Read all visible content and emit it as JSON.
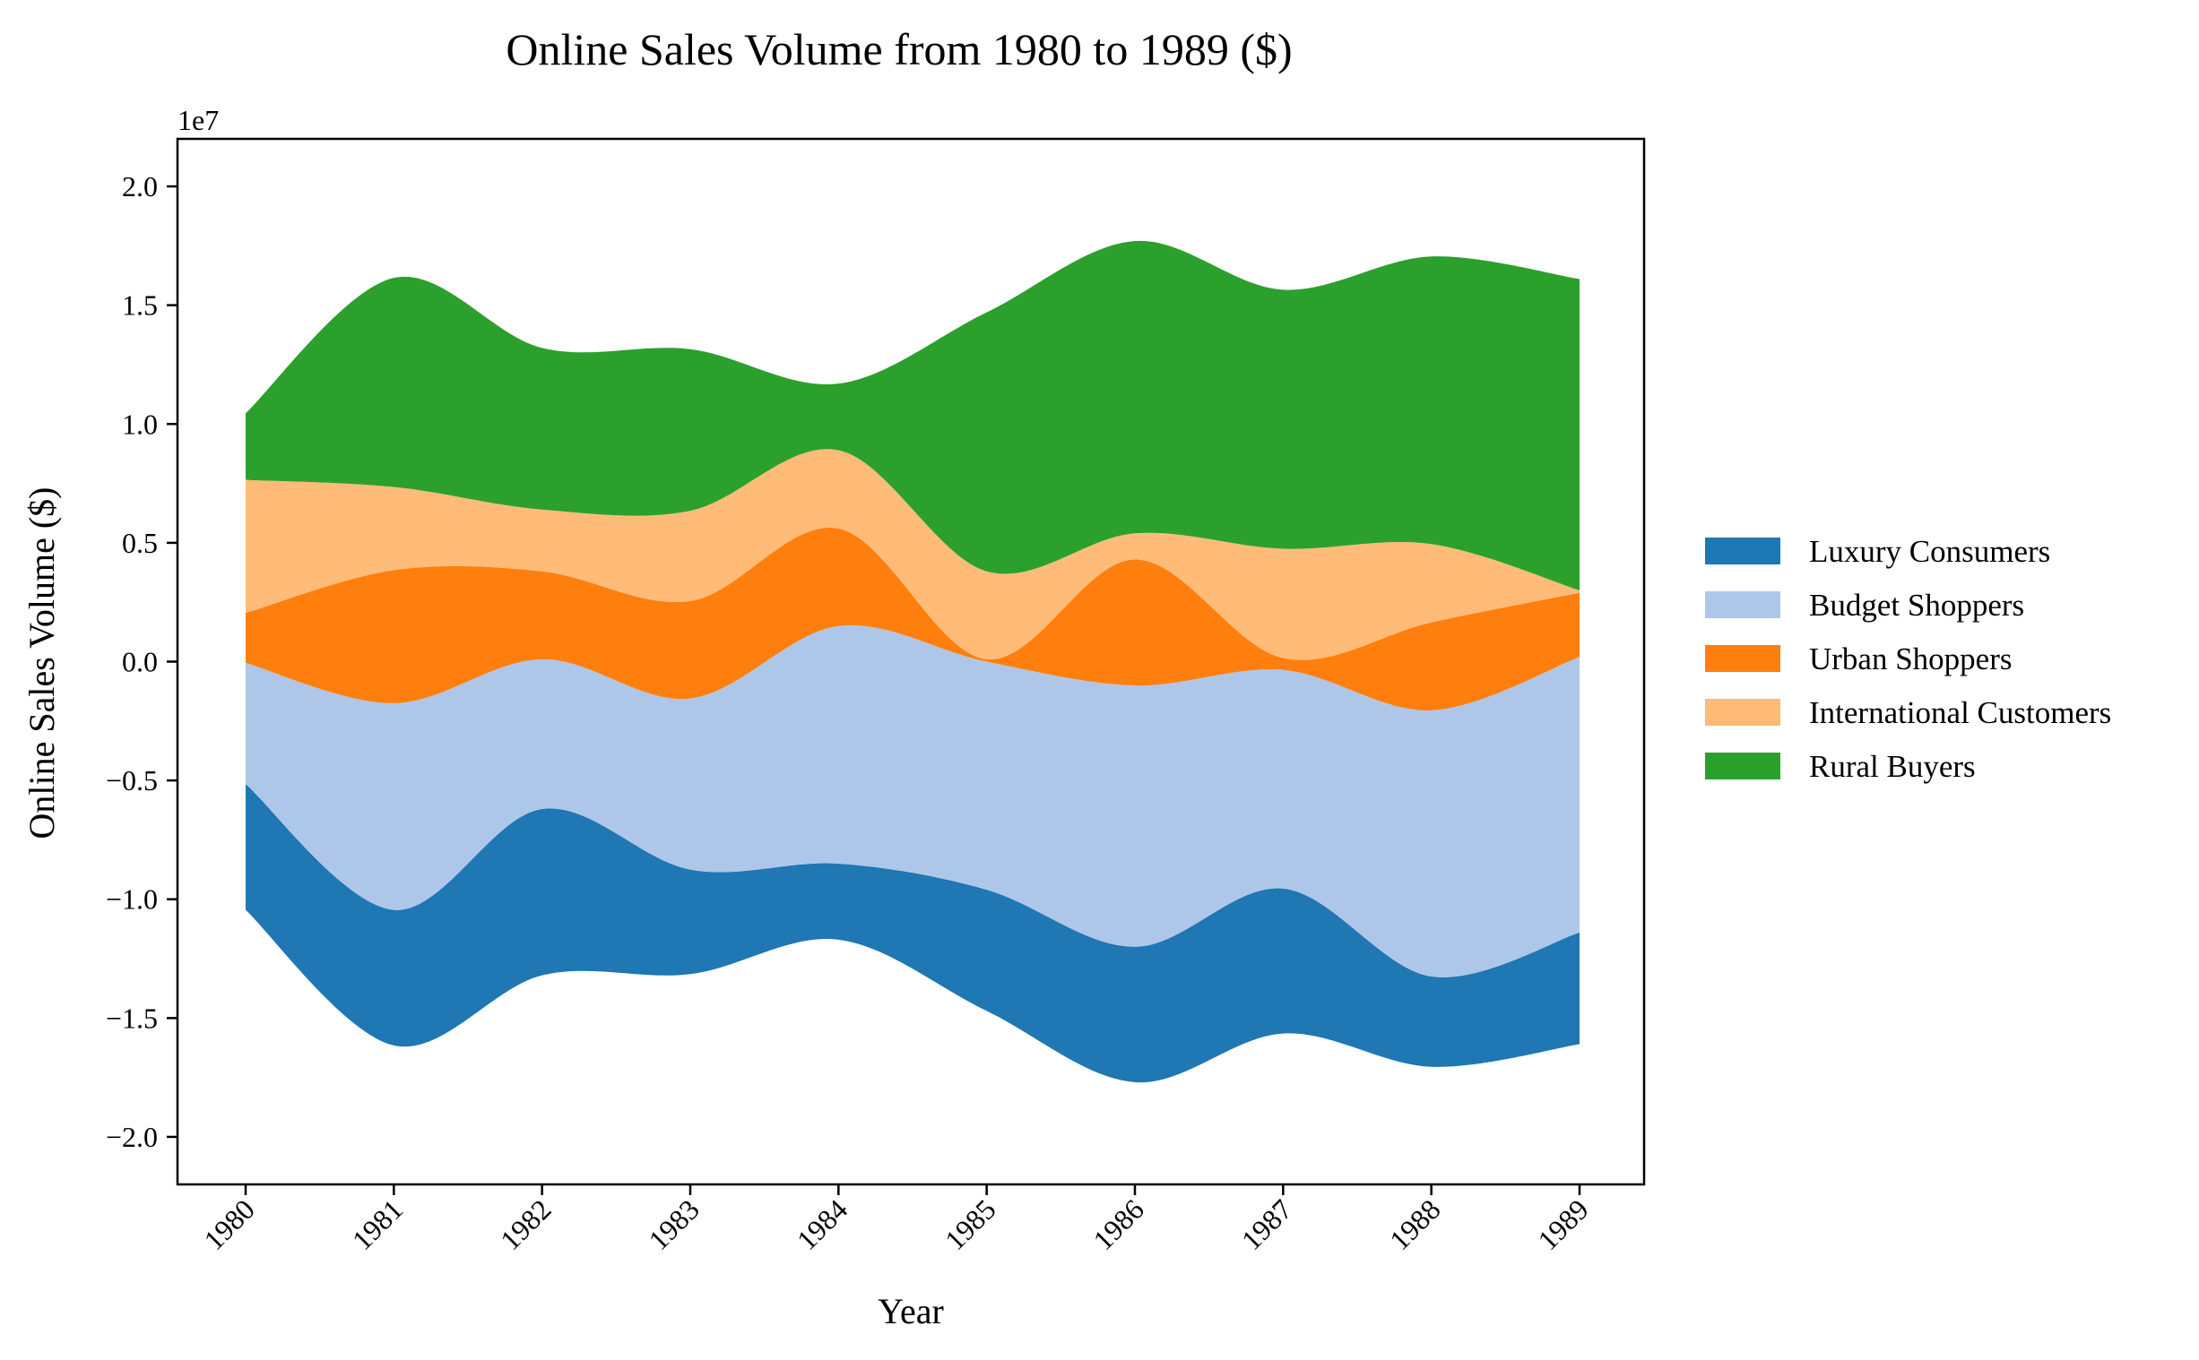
{
  "chart_data": {
    "type": "area",
    "layout": "streamgraph (centered baseline, smoothed)",
    "title": "Online Sales Volume from 1980 to 1989 ($)",
    "xlabel": "Year",
    "ylabel": "Online Sales Volume ($)",
    "y_offset_text": "1e7",
    "categories": [
      "1980",
      "1981",
      "1982",
      "1983",
      "1984",
      "1985",
      "1986",
      "1987",
      "1988",
      "1989"
    ],
    "ylim": [
      -2.2,
      2.2
    ],
    "y_ticks": [
      -2.0,
      -1.5,
      -1.0,
      -0.5,
      0.0,
      0.5,
      1.0,
      1.5,
      2.0
    ],
    "y_tick_labels": [
      "−2.0",
      "−1.5",
      "−1.0",
      "−0.5",
      "0.0",
      "0.5",
      "1.0",
      "1.5",
      "2.0"
    ],
    "y_unit_multiplier": 10000000,
    "series": [
      {
        "name": "Luxury Consumers",
        "color": "#1f77b4",
        "values": [
          5300000,
          5700000,
          7000000,
          4400000,
          3200000,
          5100000,
          5700000,
          6100000,
          3800000,
          4700000
        ]
      },
      {
        "name": "Budget Shoppers",
        "color": "#aec7e8",
        "values": [
          5100000,
          8700000,
          6300000,
          7200000,
          10000000,
          9600000,
          11000000,
          9200000,
          11200000,
          11600000
        ]
      },
      {
        "name": "Urban Shoppers",
        "color": "#ff7f0e",
        "values": [
          2100000,
          5600000,
          3700000,
          4100000,
          4100000,
          100000,
          5300000,
          500000,
          3700000,
          2700000
        ]
      },
      {
        "name": "International Customers",
        "color": "#ffbb78",
        "values": [
          5600000,
          3500000,
          2600000,
          3800000,
          3300000,
          3700000,
          1100000,
          4600000,
          3300000,
          100000
        ]
      },
      {
        "name": "Rural Buyers",
        "color": "#2ca02c",
        "values": [
          2800000,
          8800000,
          6800000,
          6800000,
          2800000,
          10900000,
          12300000,
          10900000,
          12100000,
          13100000
        ]
      }
    ],
    "legend_position": "center-right",
    "grid": false
  }
}
